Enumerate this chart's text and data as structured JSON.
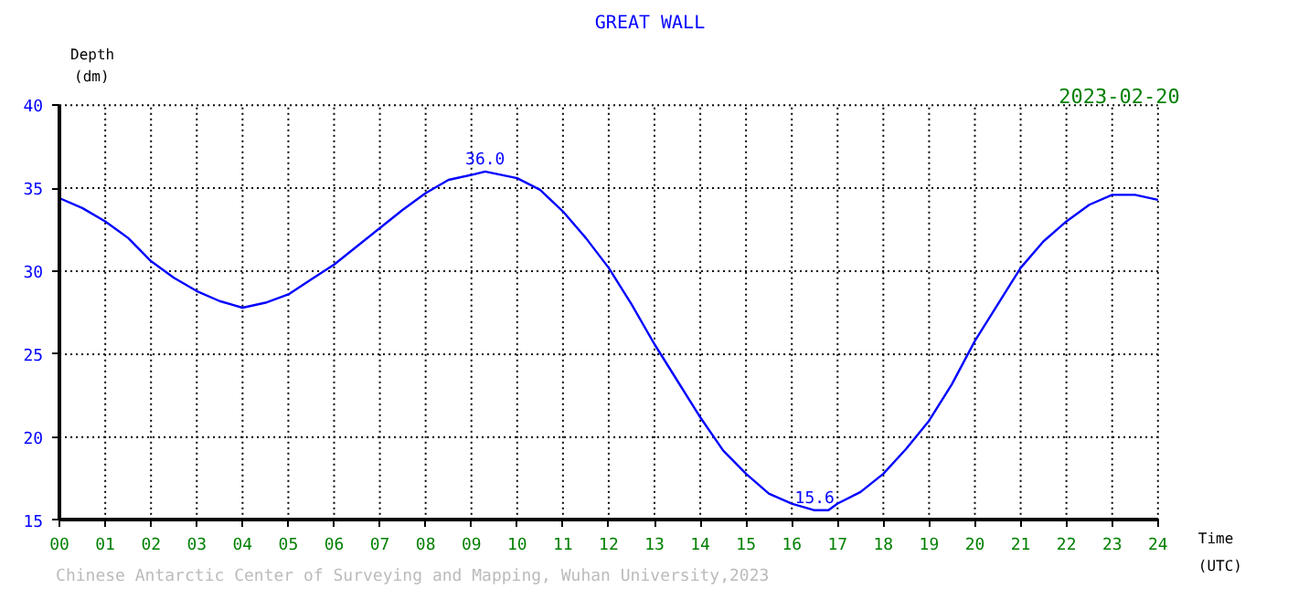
{
  "chart_data": {
    "type": "line",
    "title": "GREAT WALL",
    "subtitle": "2023-02-20",
    "xlabel": "Time\n(UTC)",
    "ylabel": "Depth\n(dm)",
    "x": [
      0,
      0.5,
      1,
      1.5,
      2,
      2.5,
      3,
      3.5,
      4,
      4.5,
      5,
      5.5,
      6,
      6.5,
      7,
      7.5,
      8,
      8.5,
      9,
      9.3,
      10,
      10.5,
      11,
      11.5,
      12,
      12.5,
      13,
      13.5,
      14,
      14.5,
      15,
      15.5,
      16,
      16.5,
      16.8,
      17,
      17.5,
      18,
      18.5,
      19,
      19.5,
      20,
      20.5,
      21,
      21.5,
      22,
      22.5,
      23,
      23.5,
      24
    ],
    "series": [
      {
        "color": "#0000ff",
        "values": [
          34.4,
          33.8,
          33.0,
          32.0,
          30.6,
          29.6,
          28.8,
          28.2,
          27.8,
          28.1,
          28.6,
          29.5,
          30.4,
          31.5,
          32.6,
          33.7,
          34.7,
          35.5,
          35.8,
          36.0,
          35.6,
          34.9,
          33.6,
          32.0,
          30.2,
          28.0,
          25.6,
          23.4,
          21.2,
          19.2,
          17.8,
          16.6,
          16.0,
          15.6,
          15.6,
          16.0,
          16.7,
          17.8,
          19.3,
          21.0,
          23.2,
          25.8,
          28.0,
          30.2,
          31.8,
          33.0,
          34.0,
          34.6,
          34.6,
          34.3
        ]
      }
    ],
    "xlim": [
      0,
      24
    ],
    "ylim": [
      15,
      40
    ],
    "xticks": [
      {
        "value": 0,
        "label": "00"
      },
      {
        "value": 1,
        "label": "01"
      },
      {
        "value": 2,
        "label": "02"
      },
      {
        "value": 3,
        "label": "03"
      },
      {
        "value": 4,
        "label": "04"
      },
      {
        "value": 5,
        "label": "05"
      },
      {
        "value": 6,
        "label": "06"
      },
      {
        "value": 7,
        "label": "07"
      },
      {
        "value": 8,
        "label": "08"
      },
      {
        "value": 9,
        "label": "09"
      },
      10,
      11,
      12,
      13,
      14,
      15,
      16,
      17,
      18,
      19,
      20,
      21,
      22,
      23,
      24
    ],
    "yticks": [
      15,
      20,
      25,
      30,
      35,
      40
    ],
    "grid": true,
    "line_style": "solid",
    "marker": "none",
    "annotations": [
      {
        "text": "36.0",
        "x": 9.3,
        "y": 36.0
      },
      {
        "text": "15.6",
        "x": 16.5,
        "y": 15.6
      },
      "Chinese Antarctic Center of Surveying and Mapping, Wuhan University,2023"
    ]
  }
}
